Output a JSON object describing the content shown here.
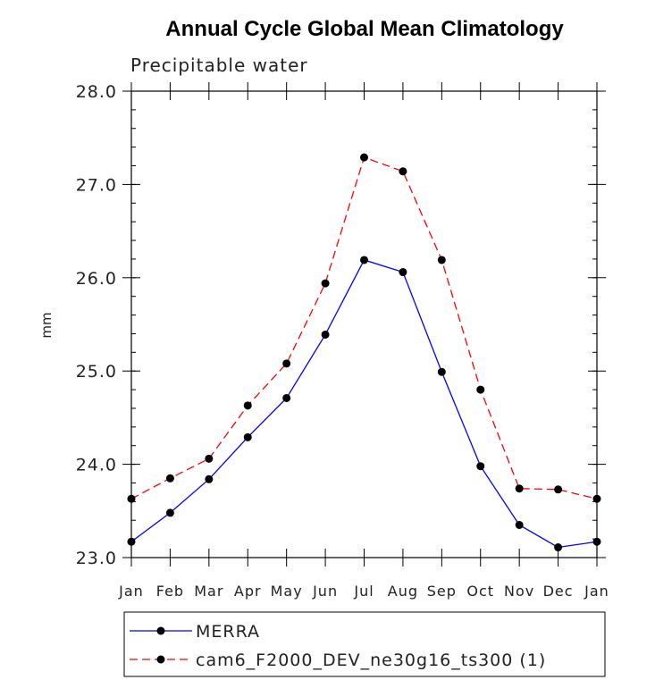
{
  "chart_data": {
    "type": "line",
    "title": "Annual Cycle Global Mean Climatology",
    "subtitle": "Precipitable water",
    "xlabel": "",
    "ylabel": "mm",
    "categories": [
      "Jan",
      "Feb",
      "Mar",
      "Apr",
      "May",
      "Jun",
      "Jul",
      "Aug",
      "Sep",
      "Oct",
      "Nov",
      "Dec",
      "Jan"
    ],
    "ylim": [
      23.0,
      28.0
    ],
    "yticks": [
      "23.0",
      "24.0",
      "25.0",
      "26.0",
      "27.0",
      "28.0"
    ],
    "grid": false,
    "legend_position": "bottom",
    "series": [
      {
        "name": "MERRA",
        "color": "#0000ff",
        "dash": "solid",
        "values": [
          23.17,
          23.48,
          23.84,
          24.29,
          24.71,
          25.39,
          26.19,
          26.06,
          24.99,
          23.98,
          23.35,
          23.11,
          23.17
        ]
      },
      {
        "name": "cam6_F2000_DEV_ne30g16_ts300 (1)",
        "color": "#ff0000",
        "dash": "dashed",
        "values": [
          23.63,
          23.85,
          24.06,
          24.63,
          25.08,
          25.94,
          27.29,
          27.14,
          26.19,
          24.8,
          23.74,
          23.73,
          23.63
        ]
      }
    ]
  }
}
